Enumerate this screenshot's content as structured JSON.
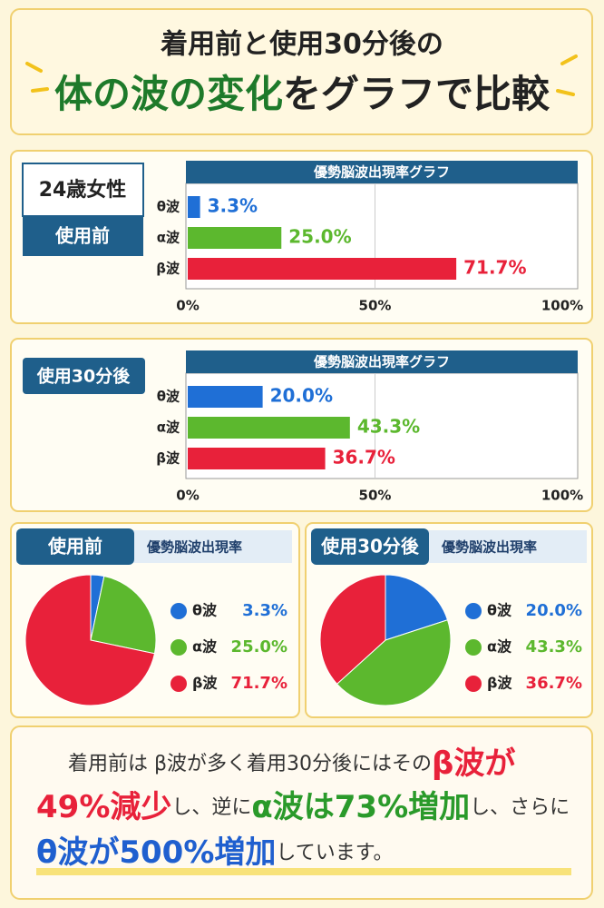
{
  "header": {
    "line1": "着用前と使用30分後の",
    "highlight": "体の波の変化",
    "rest": "をグラフで比較"
  },
  "chart_data": [
    {
      "type": "bar",
      "label": "24歳女性",
      "sublabel": "使用前",
      "title": "優勢脳波出現率グラフ",
      "categories": [
        "θ波",
        "α波",
        "β波"
      ],
      "values": [
        3.3,
        25.0,
        71.7
      ],
      "value_labels": [
        "3.3%",
        "25.0%",
        "71.7%"
      ],
      "colors": [
        "#1f6fd6",
        "#5cb82e",
        "#e8213a"
      ],
      "xlim": [
        0,
        100
      ],
      "xticks": [
        {
          "value": 0,
          "label": "0%"
        },
        {
          "value": 50,
          "label": "50%"
        },
        {
          "value": 100,
          "label": "100%"
        }
      ],
      "grid": true
    },
    {
      "type": "bar",
      "label": "使用30分後",
      "title": "優勢脳波出現率グラフ",
      "categories": [
        "θ波",
        "α波",
        "β波"
      ],
      "values": [
        20.0,
        43.3,
        36.7
      ],
      "value_labels": [
        "20.0%",
        "43.3%",
        "36.7%"
      ],
      "colors": [
        "#1f6fd6",
        "#5cb82e",
        "#e8213a"
      ],
      "xlim": [
        0,
        100
      ],
      "xticks": [
        {
          "value": 0,
          "label": "0%"
        },
        {
          "value": 50,
          "label": "50%"
        },
        {
          "value": 100,
          "label": "100%"
        }
      ],
      "grid": true
    },
    {
      "type": "pie",
      "label": "使用前",
      "title": "優勢脳波出現率",
      "categories": [
        "θ波",
        "α波",
        "β波"
      ],
      "values": [
        3.3,
        25.0,
        71.7
      ],
      "value_labels": [
        "3.3%",
        "25.0%",
        "71.7%"
      ],
      "colors": [
        "#1f6fd6",
        "#5cb82e",
        "#e8213a"
      ]
    },
    {
      "type": "pie",
      "label": "使用30分後",
      "title": "優勢脳波出現率",
      "categories": [
        "θ波",
        "α波",
        "β波"
      ],
      "values": [
        20.0,
        43.3,
        36.7
      ],
      "value_labels": [
        "20.0%",
        "43.3%",
        "36.7%"
      ],
      "colors": [
        "#1f6fd6",
        "#5cb82e",
        "#e8213a"
      ]
    }
  ],
  "summary": {
    "parts": [
      "着用前は β波が多く着用30分後にはその",
      "β波が",
      "49%減少",
      "し、逆に",
      "α波は73%増加",
      "し、さらに",
      "θ波が500%増加",
      "しています。"
    ]
  }
}
